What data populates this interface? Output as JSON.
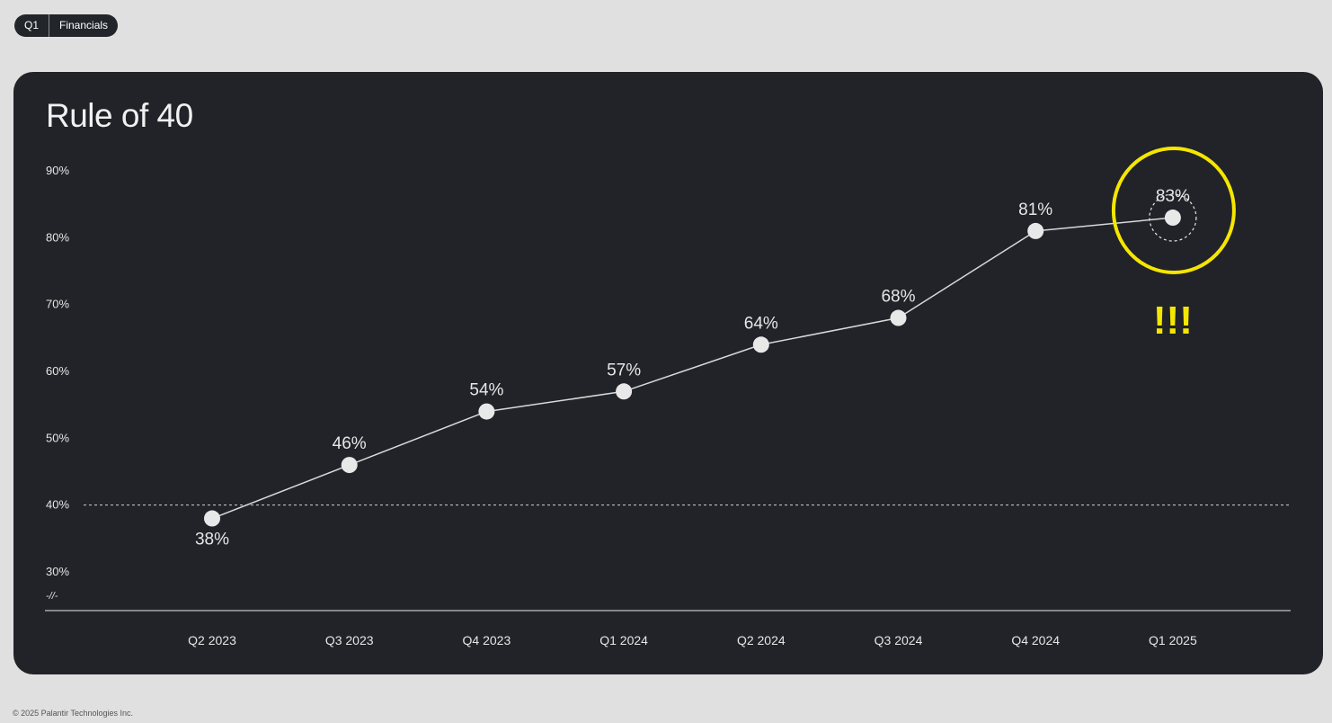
{
  "tag": {
    "quarter": "Q1",
    "section": "Financials"
  },
  "footer": "© 2025 Palantir Technologies Inc.",
  "chart_data": {
    "type": "line",
    "title": "Rule of 40",
    "xlabel": "",
    "ylabel": "",
    "categories": [
      "Q2 2023",
      "Q3 2023",
      "Q4 2023",
      "Q1 2024",
      "Q2 2024",
      "Q3 2024",
      "Q4 2024",
      "Q1 2025"
    ],
    "values": [
      38,
      46,
      54,
      57,
      64,
      68,
      81,
      83
    ],
    "value_labels": [
      "38%",
      "46%",
      "54%",
      "57%",
      "64%",
      "68%",
      "81%",
      "83%"
    ],
    "y_ticks": [
      {
        "value": 30,
        "label": "30%"
      },
      {
        "value": 40,
        "label": "40%"
      },
      {
        "value": 50,
        "label": "50%"
      },
      {
        "value": 60,
        "label": "60%"
      },
      {
        "value": 70,
        "label": "70%"
      },
      {
        "value": 80,
        "label": "80%"
      },
      {
        "value": 90,
        "label": "90%"
      }
    ],
    "ylim": [
      30,
      90
    ],
    "axis_break_label": "-//-",
    "reference_line": {
      "value": 40,
      "style": "dashed"
    },
    "highlight": {
      "category": "Q1 2025",
      "annotation": "!!!",
      "color": "#f5e600"
    },
    "colors": {
      "line": "#d9d9d9",
      "point": "#e8e8e8",
      "text": "#e6e6e6",
      "background": "#212328"
    }
  }
}
